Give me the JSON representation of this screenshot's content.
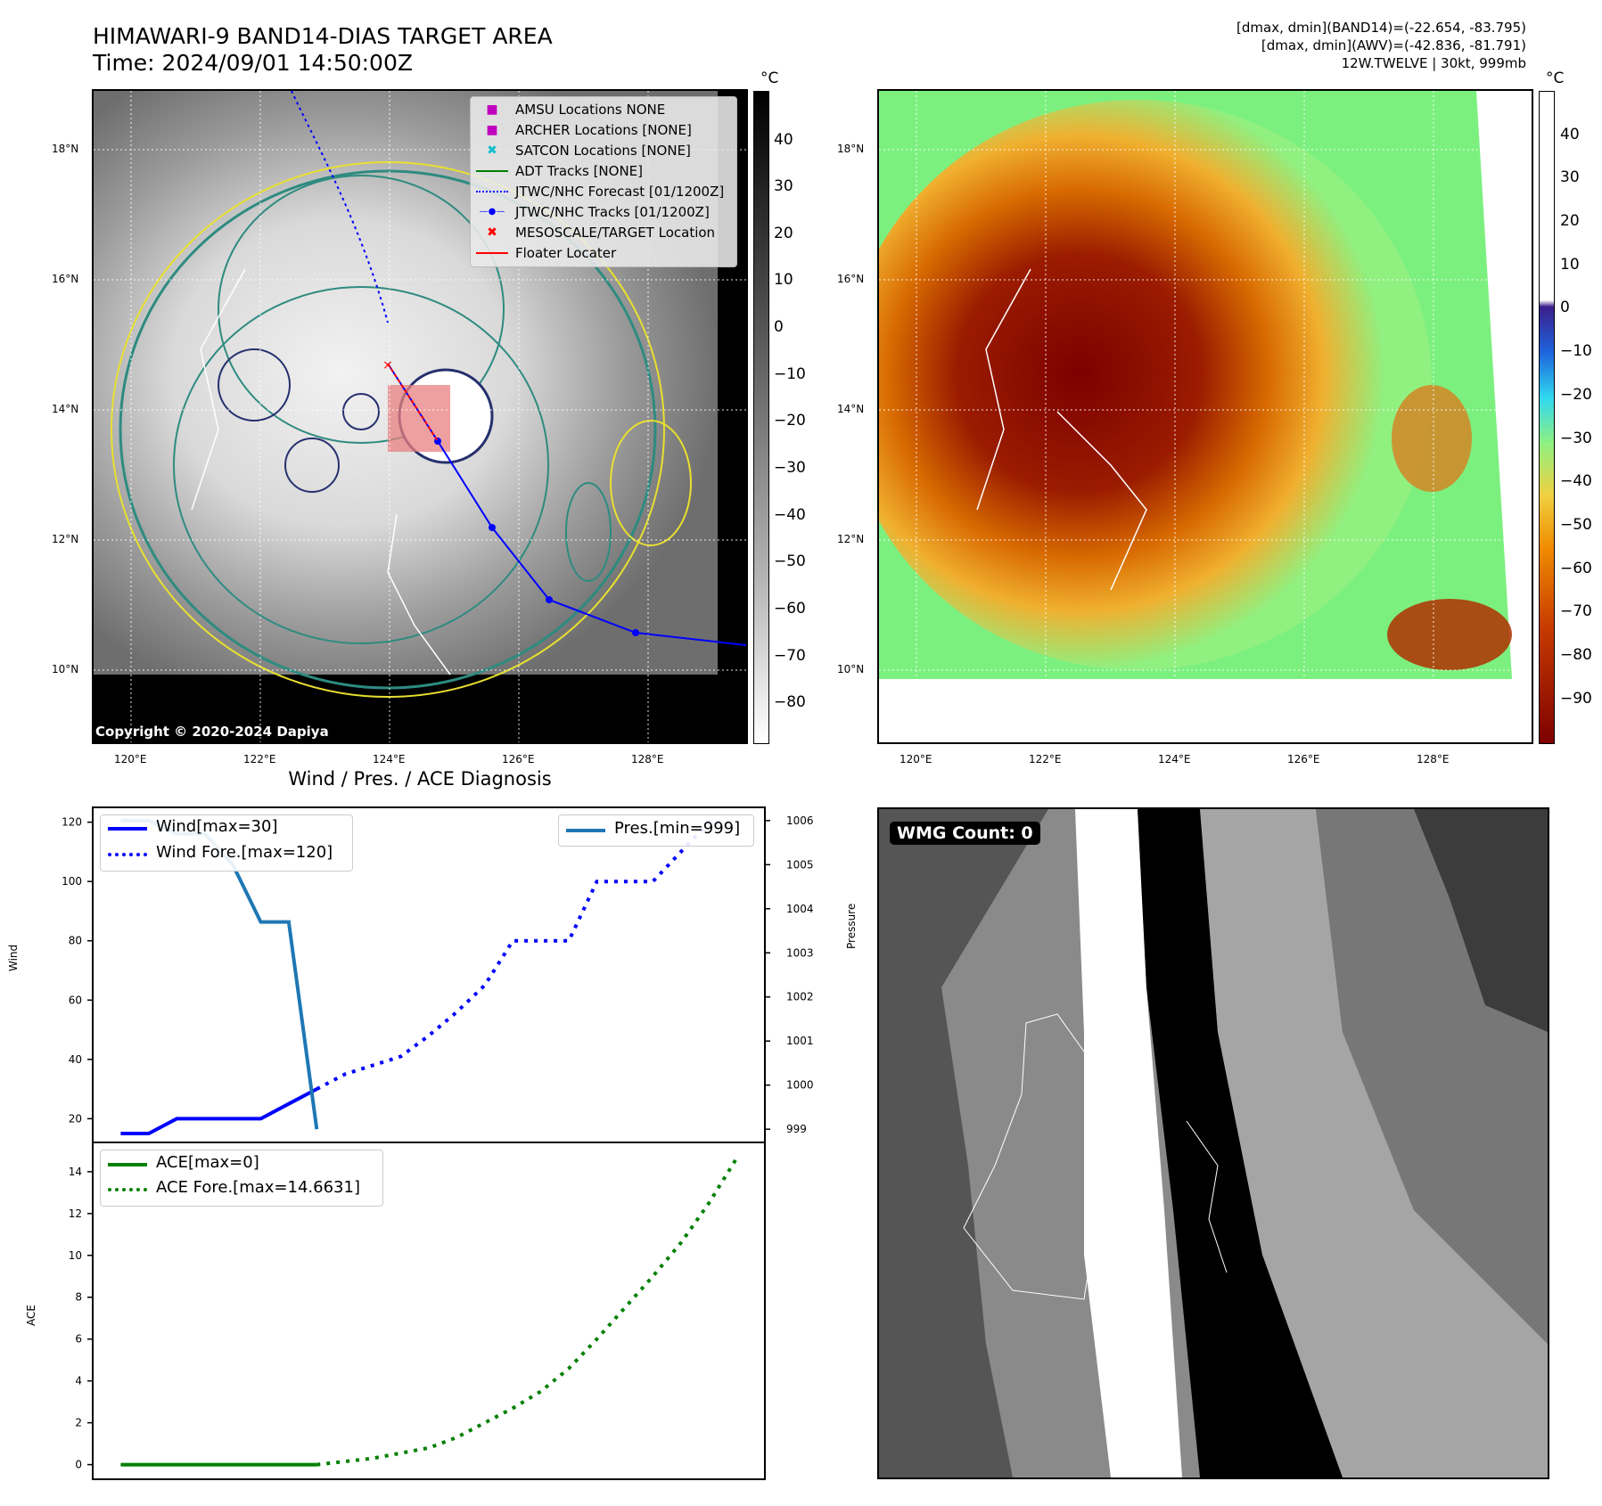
{
  "header": {
    "title_line1": "HIMAWARI-9 BAND14-DIAS TARGET AREA",
    "title_line2": "Time: 2024/09/01 14:50:00Z",
    "info_line1": "[dmax, dmin](BAND14)=(-22.654, -83.795)",
    "info_line2": "[dmax, dmin](AWV)=(-42.836, -81.791)",
    "info_line3": "12W.TWELVE | 30kt, 999mb"
  },
  "map": {
    "lat_labels": [
      "18°N",
      "16°N",
      "14°N",
      "12°N",
      "10°N"
    ],
    "lon_labels": [
      "120°E",
      "122°E",
      "124°E",
      "126°E",
      "128°E"
    ],
    "copyright": "Copyright © 2020-2024 Dapiya",
    "unit": "°C",
    "left_colorbar_ticks": [
      "40",
      "30",
      "20",
      "10",
      "0",
      "−10",
      "−20",
      "−30",
      "−40",
      "−50",
      "−60",
      "−70",
      "−80"
    ],
    "right_colorbar_ticks": [
      "40",
      "30",
      "20",
      "10",
      "0",
      "−10",
      "−20",
      "−30",
      "−40",
      "−50",
      "−60",
      "−70",
      "−80",
      "−90"
    ],
    "legend": [
      {
        "label": "AMSU Locations NONE",
        "color": "#bf00bf",
        "marker": "square"
      },
      {
        "label": "ARCHER Locations [NONE]",
        "color": "#bf00bf",
        "marker": "square"
      },
      {
        "label": "SATCON Locations [NONE]",
        "color": "#17becf",
        "marker": "x"
      },
      {
        "label": "ADT Tracks [NONE]",
        "color": "#008000",
        "marker": "line"
      },
      {
        "label": "JTWC/NHC Forecast [01/1200Z]",
        "color": "#0000ff",
        "marker": "dotted"
      },
      {
        "label": "JTWC/NHC Tracks [01/1200Z]",
        "color": "#0000ff",
        "marker": "line-dot"
      },
      {
        "label": "MESOSCALE/TARGET Location",
        "color": "#ff0000",
        "marker": "x"
      },
      {
        "label": "Floater Locater",
        "color": "#ff0000",
        "marker": "line"
      }
    ]
  },
  "wmg": {
    "label": "WMG Count: 0"
  },
  "chart_data": [
    {
      "type": "line",
      "title": "Wind / Pres. / ACE Diagnosis",
      "ylabel": "Wind",
      "ylabel2": "Pressure",
      "ylim": [
        12,
        125
      ],
      "y2lim": [
        998.7,
        1006.3
      ],
      "yticks": [
        20,
        40,
        60,
        80,
        100,
        120
      ],
      "y2ticks": [
        999,
        1000,
        1001,
        1002,
        1003,
        1004,
        1005,
        1006
      ],
      "series": [
        {
          "name": "Wind[max=30]",
          "color": "#0000ff",
          "style": "solid",
          "axis": "left",
          "x": [
            0,
            1,
            2,
            3,
            4,
            5,
            6,
            7
          ],
          "values": [
            15,
            15,
            20,
            20,
            20,
            20,
            25,
            30
          ]
        },
        {
          "name": "Wind Fore.[max=120]",
          "color": "#0000ff",
          "style": "dotted",
          "axis": "left",
          "x": [
            7,
            8,
            9,
            10,
            11,
            12,
            13,
            14,
            15,
            16,
            17,
            18,
            19,
            20,
            21,
            22
          ],
          "values": [
            30,
            35,
            38,
            41,
            48,
            56,
            65,
            80,
            80,
            80,
            100,
            100,
            100,
            110,
            120,
            120
          ]
        },
        {
          "name": "Pres.[min=999]",
          "color": "#1f77b4",
          "style": "solid",
          "axis": "right",
          "x": [
            0,
            1,
            2,
            3,
            4,
            5,
            6,
            7
          ],
          "values": [
            1006,
            1006,
            1005.7,
            1005.7,
            1005,
            1003.7,
            1003.7,
            999
          ]
        }
      ]
    },
    {
      "type": "line",
      "ylabel": "ACE",
      "ylim": [
        -0.7,
        15.4
      ],
      "yticks": [
        0,
        2,
        4,
        6,
        8,
        10,
        12,
        14
      ],
      "series": [
        {
          "name": "ACE[max=0]",
          "color": "#008000",
          "style": "solid",
          "x": [
            0,
            7
          ],
          "values": [
            0,
            0
          ]
        },
        {
          "name": "ACE Fore.[max=14.6631]",
          "color": "#008000",
          "style": "dotted",
          "x": [
            7,
            9,
            11,
            12,
            13,
            14,
            15,
            16,
            17,
            18,
            19,
            20,
            21,
            22
          ],
          "values": [
            0,
            0.3,
            0.8,
            1.3,
            2.0,
            2.7,
            3.5,
            4.6,
            6.0,
            7.5,
            9.0,
            10.6,
            12.5,
            14.6631
          ]
        }
      ]
    }
  ]
}
